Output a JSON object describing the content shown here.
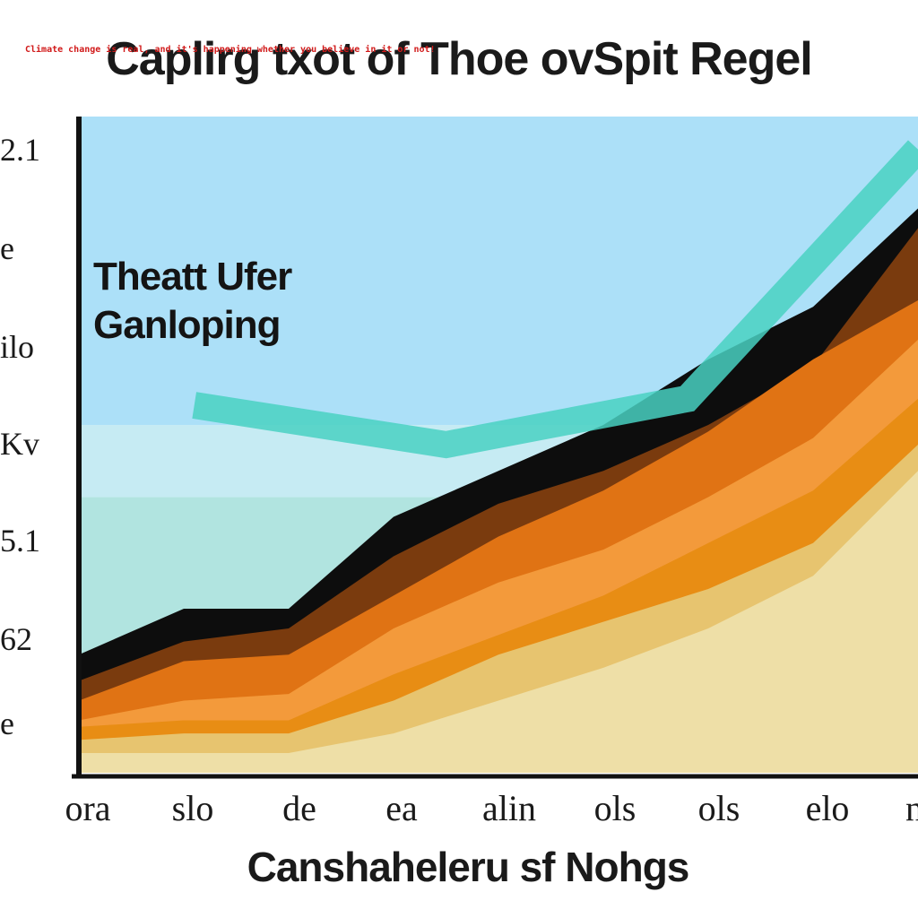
{
  "note": "Climate change is real, and it's happening whether you believe in it or not!",
  "chart_data": {
    "type": "area",
    "title": "Caplirg txot of Thoe ovSpit Regel",
    "xlabel": "Canshaheleru sf Nohgs",
    "ylabel": "",
    "annotation": [
      "Theatt Ufer",
      "Ganloping"
    ],
    "y_tick_labels": [
      "2.1",
      "e",
      "ilo",
      "Kv",
      "5.1",
      "62",
      "e"
    ],
    "x_tick_labels": [
      "ora",
      "slo",
      "de",
      "ea",
      "alin",
      "ols",
      "ols",
      "elo",
      "n"
    ],
    "x": [
      0,
      1,
      2,
      3,
      4,
      5,
      6,
      7,
      8
    ],
    "xlim": [
      0,
      8
    ],
    "ylim": [
      0,
      100
    ],
    "background_bands": [
      {
        "from": 0,
        "to": 42,
        "color": "#b1e4e0"
      },
      {
        "from": 42,
        "to": 53,
        "color": "#c6ebf3"
      },
      {
        "from": 53,
        "to": 100,
        "color": "#ace0f8"
      }
    ],
    "series": [
      {
        "values": [
          3,
          3,
          3,
          6,
          11,
          16,
          22,
          30,
          46
        ],
        "color": "#eedfa7"
      },
      {
        "values": [
          5,
          6,
          6,
          11,
          18,
          23,
          28,
          35,
          50
        ],
        "color": "#e7c46f"
      },
      {
        "values": [
          7,
          8,
          8,
          15,
          21,
          27,
          35,
          43,
          57
        ],
        "color": "#e88d14"
      },
      {
        "values": [
          8,
          11,
          12,
          22,
          29,
          34,
          42,
          51,
          66
        ],
        "color": "#f39a3b"
      },
      {
        "values": [
          11,
          17,
          18,
          27,
          36,
          43,
          52,
          63,
          72
        ],
        "color": "#e07314"
      },
      {
        "values": [
          14,
          20,
          22,
          33,
          41,
          46,
          53,
          62,
          83
        ],
        "color": "#7a3b0e"
      },
      {
        "values": [
          18,
          25,
          25,
          39,
          46,
          53,
          63,
          71,
          86
        ],
        "color": "#0d0d0d"
      }
    ],
    "trend_line": {
      "x": [
        1.1,
        3.5,
        5.8,
        8
      ],
      "values": [
        56,
        50,
        57,
        95
      ],
      "color": "#49d1c2"
    }
  }
}
